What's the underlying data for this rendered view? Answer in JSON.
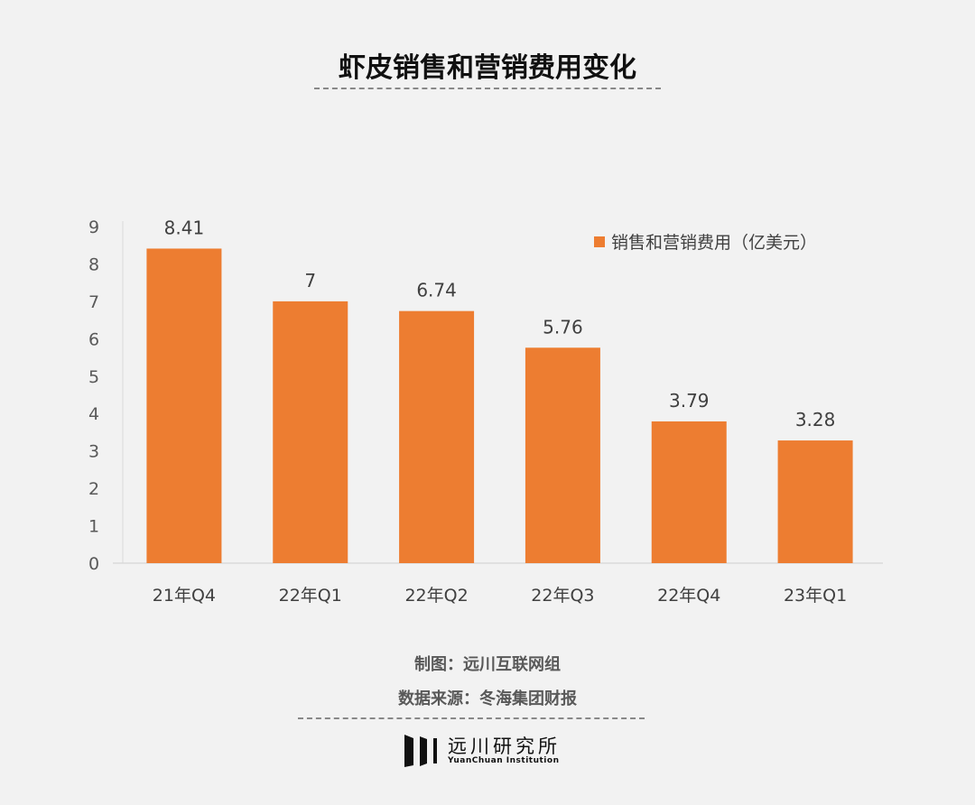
{
  "title": "虾皮销售和营销费用变化",
  "credits": {
    "made_by": "制图：远川互联网组",
    "source": "数据来源：冬海集团财报"
  },
  "logo": {
    "cn": "远川研究所",
    "en": "YuanChuan Institution"
  },
  "chart_data": {
    "type": "bar",
    "title": "虾皮销售和营销费用变化",
    "categories": [
      "21年Q4",
      "22年Q1",
      "22年Q2",
      "22年Q3",
      "22年Q4",
      "23年Q1"
    ],
    "series": [
      {
        "name": "销售和营销费用（亿美元）",
        "values": [
          8.41,
          7,
          6.74,
          5.76,
          3.79,
          3.28
        ],
        "color": "#ed7d31"
      }
    ],
    "data_labels": [
      "8.41",
      "7",
      "6.74",
      "5.76",
      "3.79",
      "3.28"
    ],
    "yticks": [
      0,
      1,
      2,
      3,
      4,
      5,
      6,
      7,
      8,
      9
    ],
    "ylim": [
      0,
      9
    ],
    "grid": false,
    "legend_position": "top-right"
  }
}
